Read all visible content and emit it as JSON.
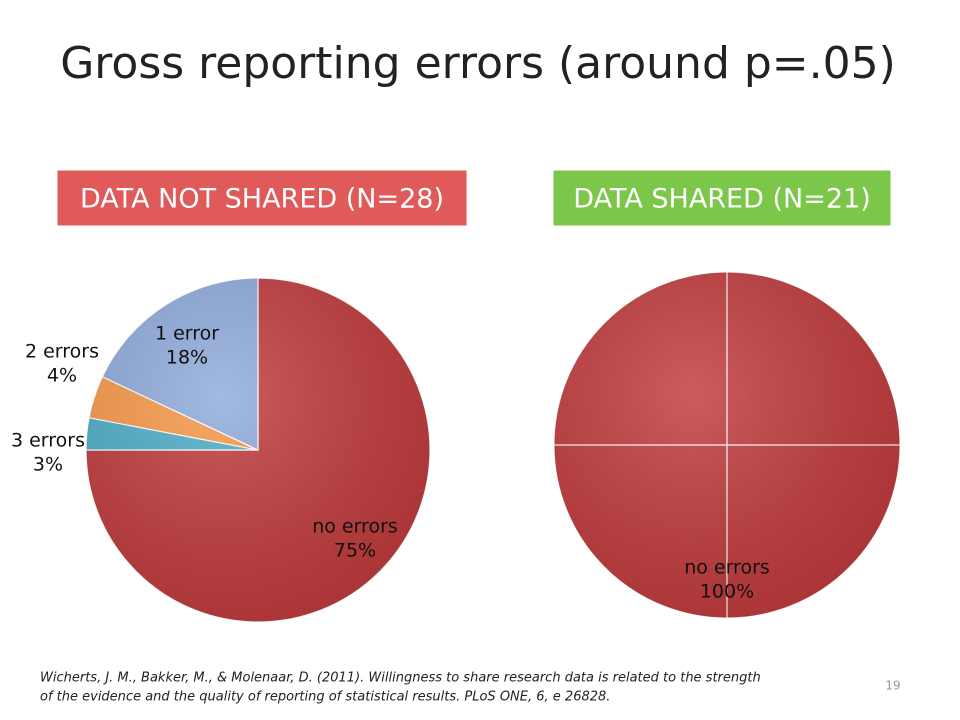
{
  "slide": {
    "title": "Gross reporting errors (around p=.05)",
    "citation": [
      "Wicherts, J. M., Bakker, M., & Molenaar, D. (2011). Willingness to share research data is related to the strength",
      "of the evidence and the quality of reporting of statistical results. PLoS ONE, 6, e 26828."
    ],
    "page_number": "19"
  },
  "chart_data": [
    {
      "type": "pie",
      "title": "DATA NOT SHARED (N=28)",
      "title_color": "#e05a5a",
      "categories": [
        "no errors",
        "3 errors",
        "2 errors",
        "1 error"
      ],
      "values": [
        75,
        3,
        4,
        18
      ],
      "value_labels": [
        "75%",
        "3%",
        "4%",
        "18%"
      ],
      "colors": [
        "#c0393b",
        "#4bacc6",
        "#f79646",
        "#8eaadb"
      ]
    },
    {
      "type": "pie",
      "title": "DATA SHARED (N=21)",
      "title_color": "#7cc64a",
      "categories": [
        "no errors"
      ],
      "values": [
        100
      ],
      "value_labels": [
        "100%"
      ],
      "colors": [
        "#c0393b"
      ]
    }
  ]
}
